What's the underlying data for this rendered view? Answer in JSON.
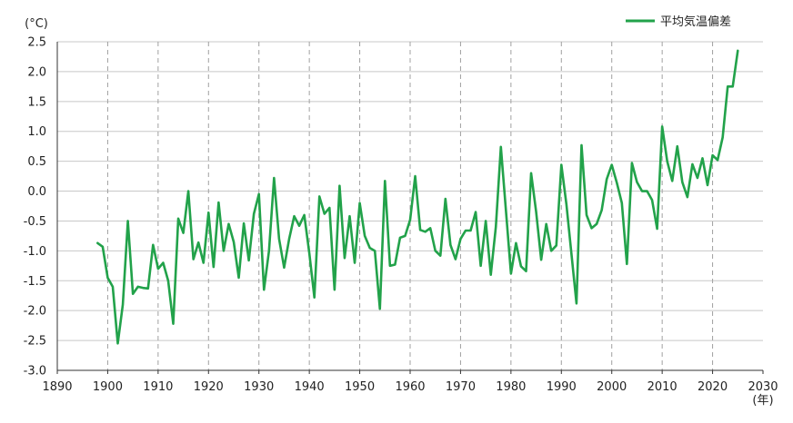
{
  "chart_data": {
    "type": "line",
    "y_unit_label": "(°C)",
    "x_unit_label": "(年)",
    "xlim": [
      1890,
      2030
    ],
    "ylim": [
      -3.0,
      2.5
    ],
    "x_ticks": [
      1890,
      1900,
      1910,
      1920,
      1930,
      1940,
      1950,
      1960,
      1970,
      1980,
      1990,
      2000,
      2010,
      2020,
      2030
    ],
    "y_ticks": [
      2.5,
      2.0,
      1.5,
      1.0,
      0.5,
      0.0,
      -0.5,
      -1.0,
      -1.5,
      -2.0,
      -2.5,
      -3.0
    ],
    "y_tick_labels": [
      "2.5",
      "2.0",
      "1.5",
      "1.0",
      "0.5",
      "0.0",
      "-0.5",
      "-1.0",
      "-1.5",
      "-2.0",
      "-2.5",
      "-3.0"
    ],
    "grid": "vertical dashed at each decade, horizontal solid at each 0.5",
    "legend_position": "top-right",
    "series": [
      {
        "name": "平均気温偏差",
        "color": "#22a24a",
        "x": [
          1898,
          1899,
          1900,
          1901,
          1902,
          1903,
          1904,
          1905,
          1906,
          1907,
          1908,
          1909,
          1910,
          1911,
          1912,
          1913,
          1914,
          1915,
          1916,
          1917,
          1918,
          1919,
          1920,
          1921,
          1922,
          1923,
          1924,
          1925,
          1926,
          1927,
          1928,
          1929,
          1930,
          1931,
          1932,
          1933,
          1934,
          1935,
          1936,
          1937,
          1938,
          1939,
          1940,
          1941,
          1942,
          1943,
          1944,
          1945,
          1946,
          1947,
          1948,
          1949,
          1950,
          1951,
          1952,
          1953,
          1954,
          1955,
          1956,
          1957,
          1958,
          1959,
          1960,
          1961,
          1962,
          1963,
          1964,
          1965,
          1966,
          1967,
          1968,
          1969,
          1970,
          1971,
          1972,
          1973,
          1974,
          1975,
          1976,
          1977,
          1978,
          1979,
          1980,
          1981,
          1982,
          1983,
          1984,
          1985,
          1986,
          1987,
          1988,
          1989,
          1990,
          1991,
          1992,
          1993,
          1994,
          1995,
          1996,
          1997,
          1998,
          1999,
          2000,
          2001,
          2002,
          2003,
          2004,
          2005,
          2006,
          2007,
          2008,
          2009,
          2010,
          2011,
          2012,
          2013,
          2014,
          2015,
          2016,
          2017,
          2018,
          2019,
          2020,
          2021,
          2022,
          2023,
          2024,
          2025
        ],
        "y": [
          -0.87,
          -0.93,
          -1.45,
          -1.6,
          -2.55,
          -1.9,
          -0.5,
          -1.72,
          -1.6,
          -1.62,
          -1.63,
          -0.9,
          -1.3,
          -1.2,
          -1.5,
          -2.22,
          -0.46,
          -0.7,
          0.0,
          -1.14,
          -0.86,
          -1.2,
          -0.36,
          -1.27,
          -0.19,
          -1.0,
          -0.55,
          -0.85,
          -1.45,
          -0.54,
          -1.16,
          -0.38,
          -0.05,
          -1.65,
          -1.0,
          0.22,
          -0.8,
          -1.28,
          -0.8,
          -0.42,
          -0.58,
          -0.4,
          -1.04,
          -1.78,
          -0.09,
          -0.38,
          -0.28,
          -1.65,
          0.09,
          -1.12,
          -0.42,
          -1.2,
          -0.2,
          -0.75,
          -0.95,
          -1.0,
          -1.97,
          0.17,
          -1.25,
          -1.23,
          -0.78,
          -0.75,
          -0.48,
          0.25,
          -0.65,
          -0.68,
          -0.62,
          -1.0,
          -1.08,
          -0.13,
          -0.9,
          -1.14,
          -0.8,
          -0.66,
          -0.66,
          -0.35,
          -1.25,
          -0.5,
          -1.4,
          -0.6,
          0.74,
          -0.32,
          -1.38,
          -0.87,
          -1.26,
          -1.34,
          0.3,
          -0.35,
          -1.15,
          -0.55,
          -1.0,
          -0.91,
          0.44,
          -0.22,
          -1.05,
          -1.88,
          0.77,
          -0.4,
          -0.62,
          -0.55,
          -0.32,
          0.2,
          0.44,
          0.14,
          -0.2,
          -1.22,
          0.47,
          0.15,
          0.0,
          0.0,
          -0.15,
          -0.63,
          1.08,
          0.5,
          0.17,
          0.75,
          0.15,
          -0.1,
          0.45,
          0.22,
          0.55,
          0.1,
          0.6,
          0.52,
          0.9,
          1.75,
          1.75,
          2.35
        ]
      }
    ]
  }
}
